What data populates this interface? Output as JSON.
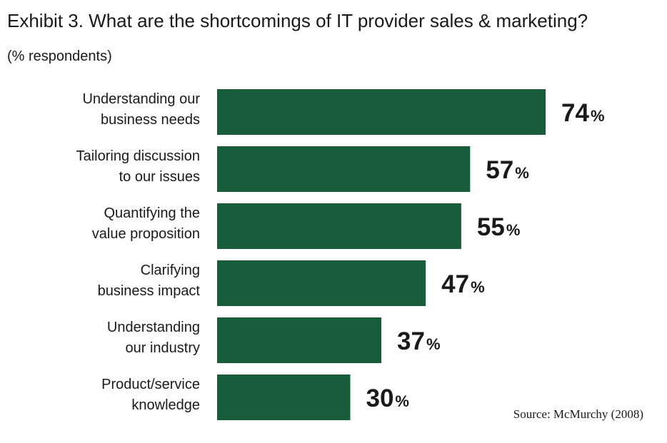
{
  "title": "Exhibit 3. What are the shortcomings of IT provider sales & marketing?",
  "subtitle": "(% respondents)",
  "source": "Source: McMurchy (2008)",
  "colors": {
    "bar": "#185c3a",
    "text": "#1a1a1a"
  },
  "chart_data": {
    "type": "bar",
    "orientation": "horizontal",
    "title": "Exhibit 3. What are the shortcomings of IT provider sales & marketing?",
    "subtitle": "(% respondents)",
    "xlabel": "",
    "ylabel": "",
    "grid": false,
    "xlim": [
      0,
      100
    ],
    "categories": [
      [
        "Understanding our",
        "business needs"
      ],
      [
        "Tailoring discussion",
        "to our issues"
      ],
      [
        "Quantifying the",
        "value proposition"
      ],
      [
        "Clarifying",
        "business impact"
      ],
      [
        "Understanding",
        "our industry"
      ],
      [
        "Product/service",
        "knowledge"
      ]
    ],
    "values": [
      74,
      57,
      55,
      47,
      37,
      30
    ],
    "value_suffix": "%"
  }
}
